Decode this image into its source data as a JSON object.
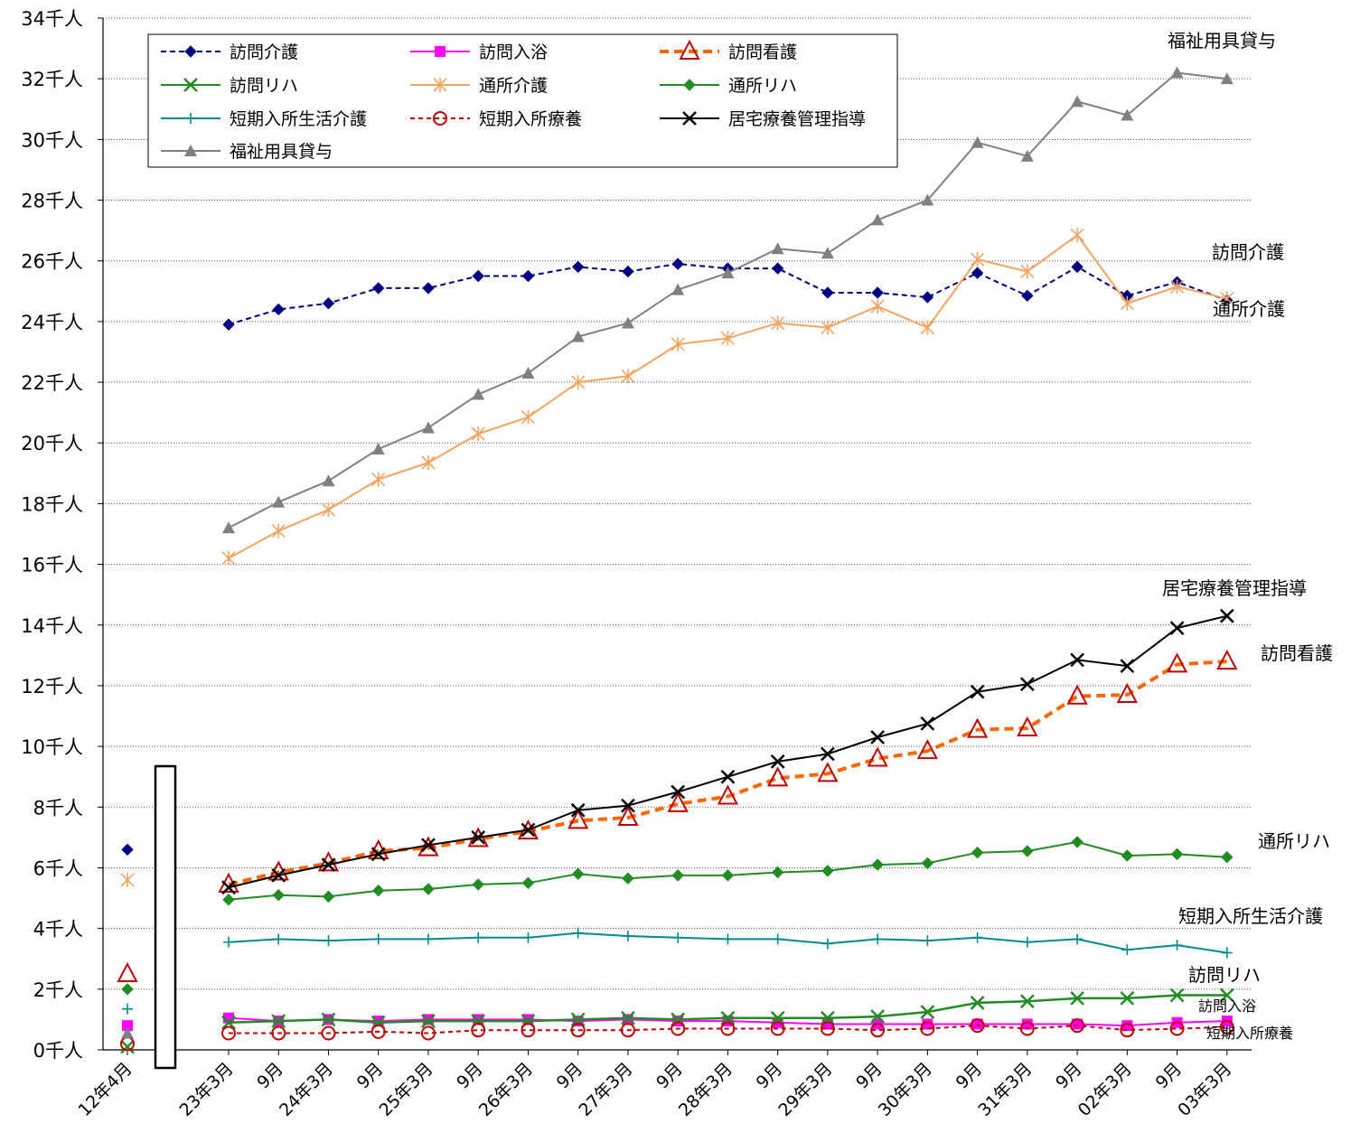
{
  "chart_data": {
    "type": "line",
    "ylim": [
      0,
      34
    ],
    "y_ticks": [
      "0千人",
      "2千人",
      "4千人",
      "6千人",
      "8千人",
      "10千人",
      "12千人",
      "14千人",
      "16千人",
      "18千人",
      "20千人",
      "22千人",
      "24千人",
      "26千人",
      "28千人",
      "30千人",
      "32千人",
      "34千人"
    ],
    "grid": "horizontal dotted",
    "legend_position": "top-left",
    "axis_break": true,
    "categories": [
      "12年4月",
      "23年3月",
      "9月",
      "24年3月",
      "9月",
      "25年3月",
      "9月",
      "26年3月",
      "9月",
      "27年3月",
      "9月",
      "28年3月",
      "9月",
      "29年3月",
      "9月",
      "30年3月",
      "9月",
      "31年3月",
      "9月",
      "02年3月",
      "9月",
      "03年3月"
    ],
    "series": [
      {
        "name": "訪問介護",
        "color": "#000080",
        "dash": "6,4",
        "marker": "diamond",
        "end_label": "訪問介護",
        "values": [
          6.6,
          23.9,
          24.4,
          24.6,
          25.1,
          25.1,
          25.5,
          25.5,
          25.8,
          25.65,
          25.9,
          25.75,
          25.75,
          24.95,
          24.95,
          24.8,
          25.6,
          24.85,
          25.8,
          24.85,
          25.3,
          24.7
        ]
      },
      {
        "name": "訪問入浴",
        "color": "#ff00ff",
        "dash": "",
        "marker": "square",
        "end_label": "訪問入浴",
        "values": [
          0.8,
          1.05,
          0.95,
          1.0,
          0.95,
          1.0,
          1.0,
          1.0,
          0.95,
          1.0,
          0.95,
          0.95,
          0.9,
          0.85,
          0.85,
          0.85,
          0.85,
          0.85,
          0.85,
          0.8,
          0.9,
          0.95
        ]
      },
      {
        "name": "訪問看護",
        "color": "#ff6600",
        "dash": "10,6",
        "marker": "triangle-open",
        "end_label": "訪問看護",
        "values": [
          2.5,
          5.45,
          5.85,
          6.15,
          6.55,
          6.65,
          6.95,
          7.2,
          7.55,
          7.65,
          8.1,
          8.35,
          8.95,
          9.1,
          9.6,
          9.85,
          10.55,
          10.6,
          11.65,
          11.7,
          12.7,
          12.8
        ]
      },
      {
        "name": "訪問リハ",
        "color": "#228b22",
        "dash": "",
        "marker": "x",
        "end_label": "訪問リハ",
        "values": [
          0.1,
          0.9,
          0.95,
          1.0,
          0.9,
          0.95,
          0.95,
          0.95,
          1.0,
          1.05,
          1.0,
          1.05,
          1.05,
          1.05,
          1.1,
          1.25,
          1.55,
          1.6,
          1.7,
          1.7,
          1.8,
          1.8
        ]
      },
      {
        "name": "通所介護",
        "color": "#f4a460",
        "dash": "",
        "marker": "asterisk",
        "end_label": "通所介護",
        "values": [
          5.6,
          16.2,
          17.1,
          17.8,
          18.8,
          19.35,
          20.3,
          20.85,
          22.0,
          22.2,
          23.25,
          23.45,
          23.95,
          23.8,
          24.5,
          23.8,
          26.05,
          25.65,
          26.85,
          24.6,
          25.15,
          24.75
        ]
      },
      {
        "name": "通所リハ",
        "color": "#228b22",
        "dash": "",
        "marker": "diamond",
        "end_label": "通所リハ",
        "values": [
          2.0,
          4.95,
          5.1,
          5.05,
          5.25,
          5.3,
          5.45,
          5.5,
          5.8,
          5.65,
          5.75,
          5.75,
          5.85,
          5.9,
          6.1,
          6.15,
          6.5,
          6.55,
          6.85,
          6.4,
          6.45,
          6.35
        ]
      },
      {
        "name": "短期入所生活介護",
        "color": "#008b8b",
        "dash": "",
        "marker": "plus",
        "end_label": "短期入所生活介護",
        "values": [
          1.35,
          3.55,
          3.65,
          3.6,
          3.65,
          3.65,
          3.7,
          3.7,
          3.85,
          3.75,
          3.7,
          3.65,
          3.65,
          3.5,
          3.65,
          3.6,
          3.7,
          3.55,
          3.65,
          3.3,
          3.45,
          3.2
        ]
      },
      {
        "name": "短期入所療養",
        "color": "#c00000",
        "dash": "5,4",
        "marker": "circle-open",
        "end_label": "短期入所療養",
        "values": [
          0.2,
          0.55,
          0.55,
          0.55,
          0.6,
          0.55,
          0.65,
          0.65,
          0.65,
          0.65,
          0.7,
          0.7,
          0.7,
          0.7,
          0.65,
          0.7,
          0.8,
          0.7,
          0.8,
          0.65,
          0.7,
          0.75
        ]
      },
      {
        "name": "居宅療養管理指導",
        "color": "#000000",
        "dash": "",
        "marker": "x",
        "end_label": "居宅療養管理指導",
        "values": [
          null,
          5.35,
          5.75,
          6.1,
          6.45,
          6.75,
          7.0,
          7.25,
          7.9,
          8.05,
          8.5,
          9.0,
          9.5,
          9.75,
          10.3,
          10.75,
          11.8,
          12.05,
          12.85,
          12.65,
          13.9,
          14.3
        ]
      },
      {
        "name": "福祉用具貸与",
        "color": "#808080",
        "dash": "",
        "marker": "triangle",
        "end_label": "福祉用具貸与",
        "values": [
          0.55,
          17.2,
          18.05,
          18.75,
          19.8,
          20.5,
          21.6,
          22.3,
          23.5,
          23.95,
          25.05,
          25.6,
          26.4,
          26.25,
          27.35,
          28.0,
          29.9,
          29.45,
          31.25,
          30.8,
          32.2,
          32.0
        ]
      }
    ]
  }
}
